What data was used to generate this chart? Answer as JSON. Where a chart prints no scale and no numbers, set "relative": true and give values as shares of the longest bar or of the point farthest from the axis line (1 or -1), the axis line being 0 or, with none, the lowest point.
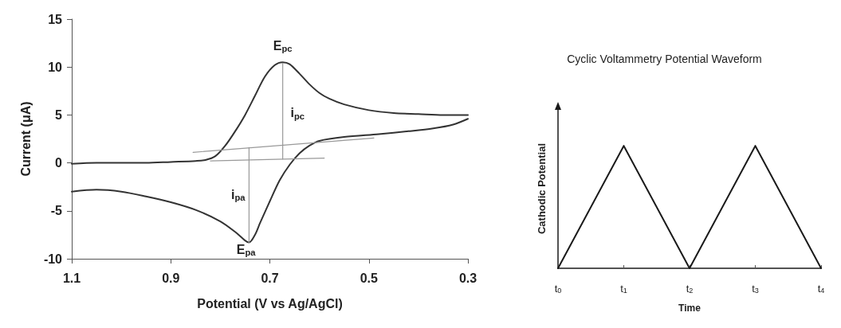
{
  "chart_data": [
    {
      "type": "line",
      "xlabel": "Potential (V vs Ag/AgCl)",
      "ylabel": "Current (μA)",
      "xlim": [
        1.1,
        0.3
      ],
      "xticks": [
        1.1,
        0.9,
        0.7,
        0.5,
        0.3
      ],
      "ylim": [
        -10,
        15
      ],
      "yticks": [
        -10,
        -5,
        0,
        5,
        10,
        15
      ],
      "grid": false,
      "marker": "none",
      "line_style": "solid",
      "series": [
        {
          "color": "#333333",
          "x": [
            1.1,
            1.05,
            1.0,
            0.95,
            0.9,
            0.85,
            0.83,
            0.81,
            0.79,
            0.77,
            0.75,
            0.73,
            0.71,
            0.69,
            0.674,
            0.66,
            0.64,
            0.62,
            0.6,
            0.58,
            0.55,
            0.5,
            0.45,
            0.4,
            0.35,
            0.3
          ],
          "values": [
            -0.1,
            0,
            0,
            0,
            0.1,
            0.2,
            0.3,
            0.7,
            1.8,
            3.3,
            5.0,
            7.0,
            9.0,
            10.2,
            10.5,
            10.3,
            9.3,
            8.2,
            7.3,
            6.7,
            6.1,
            5.5,
            5.2,
            5.1,
            5.0,
            5.0
          ]
        },
        {
          "color": "#333333",
          "x": [
            0.3,
            0.33,
            0.37,
            0.42,
            0.48,
            0.55,
            0.6,
            0.62,
            0.64,
            0.66,
            0.68,
            0.7,
            0.72,
            0.73,
            0.742,
            0.75,
            0.77,
            0.8,
            0.85,
            0.9,
            0.95,
            1.0,
            1.05,
            1.1
          ],
          "values": [
            4.6,
            4.0,
            3.6,
            3.3,
            3.0,
            2.7,
            2.3,
            1.8,
            1.0,
            -0.2,
            -1.8,
            -4.0,
            -6.3,
            -7.5,
            -8.3,
            -8.1,
            -7.2,
            -6.1,
            -4.9,
            -4.1,
            -3.5,
            -3.0,
            -2.8,
            -3.0
          ]
        },
        {
          "color": "#999999",
          "x": [
            0.855,
            0.49
          ],
          "values": [
            1.1,
            2.6
          ]
        },
        {
          "color": "#999999",
          "x": [
            0.82,
            0.59
          ],
          "values": [
            0.2,
            0.5
          ]
        },
        {
          "color": "#999999",
          "x": [
            0.674,
            0.674
          ],
          "values": [
            0.4,
            10.4
          ]
        },
        {
          "color": "#999999",
          "x": [
            0.742,
            0.742
          ],
          "values": [
            1.6,
            -8.3
          ]
        }
      ],
      "annotations": [
        "E$_{pc}$",
        "i$_{pc}$",
        "i$_{pa}$",
        "E$_{pa}$"
      ]
    },
    {
      "type": "line",
      "title": "Cyclic Voltammetry Potential Waveform",
      "xlabel": "Time",
      "ylabel": "Cathodic Potential",
      "relative": true,
      "categories": [
        "t$_{0}$",
        "t$_{1}$",
        "t$_{2}$",
        "t$_{3}$",
        "t$_{4}$"
      ],
      "grid": false,
      "marker": "none",
      "line_style": "solid",
      "series": [
        {
          "color": "#1a1a1a",
          "values": [
            0,
            1,
            0,
            1,
            0
          ]
        }
      ]
    }
  ]
}
